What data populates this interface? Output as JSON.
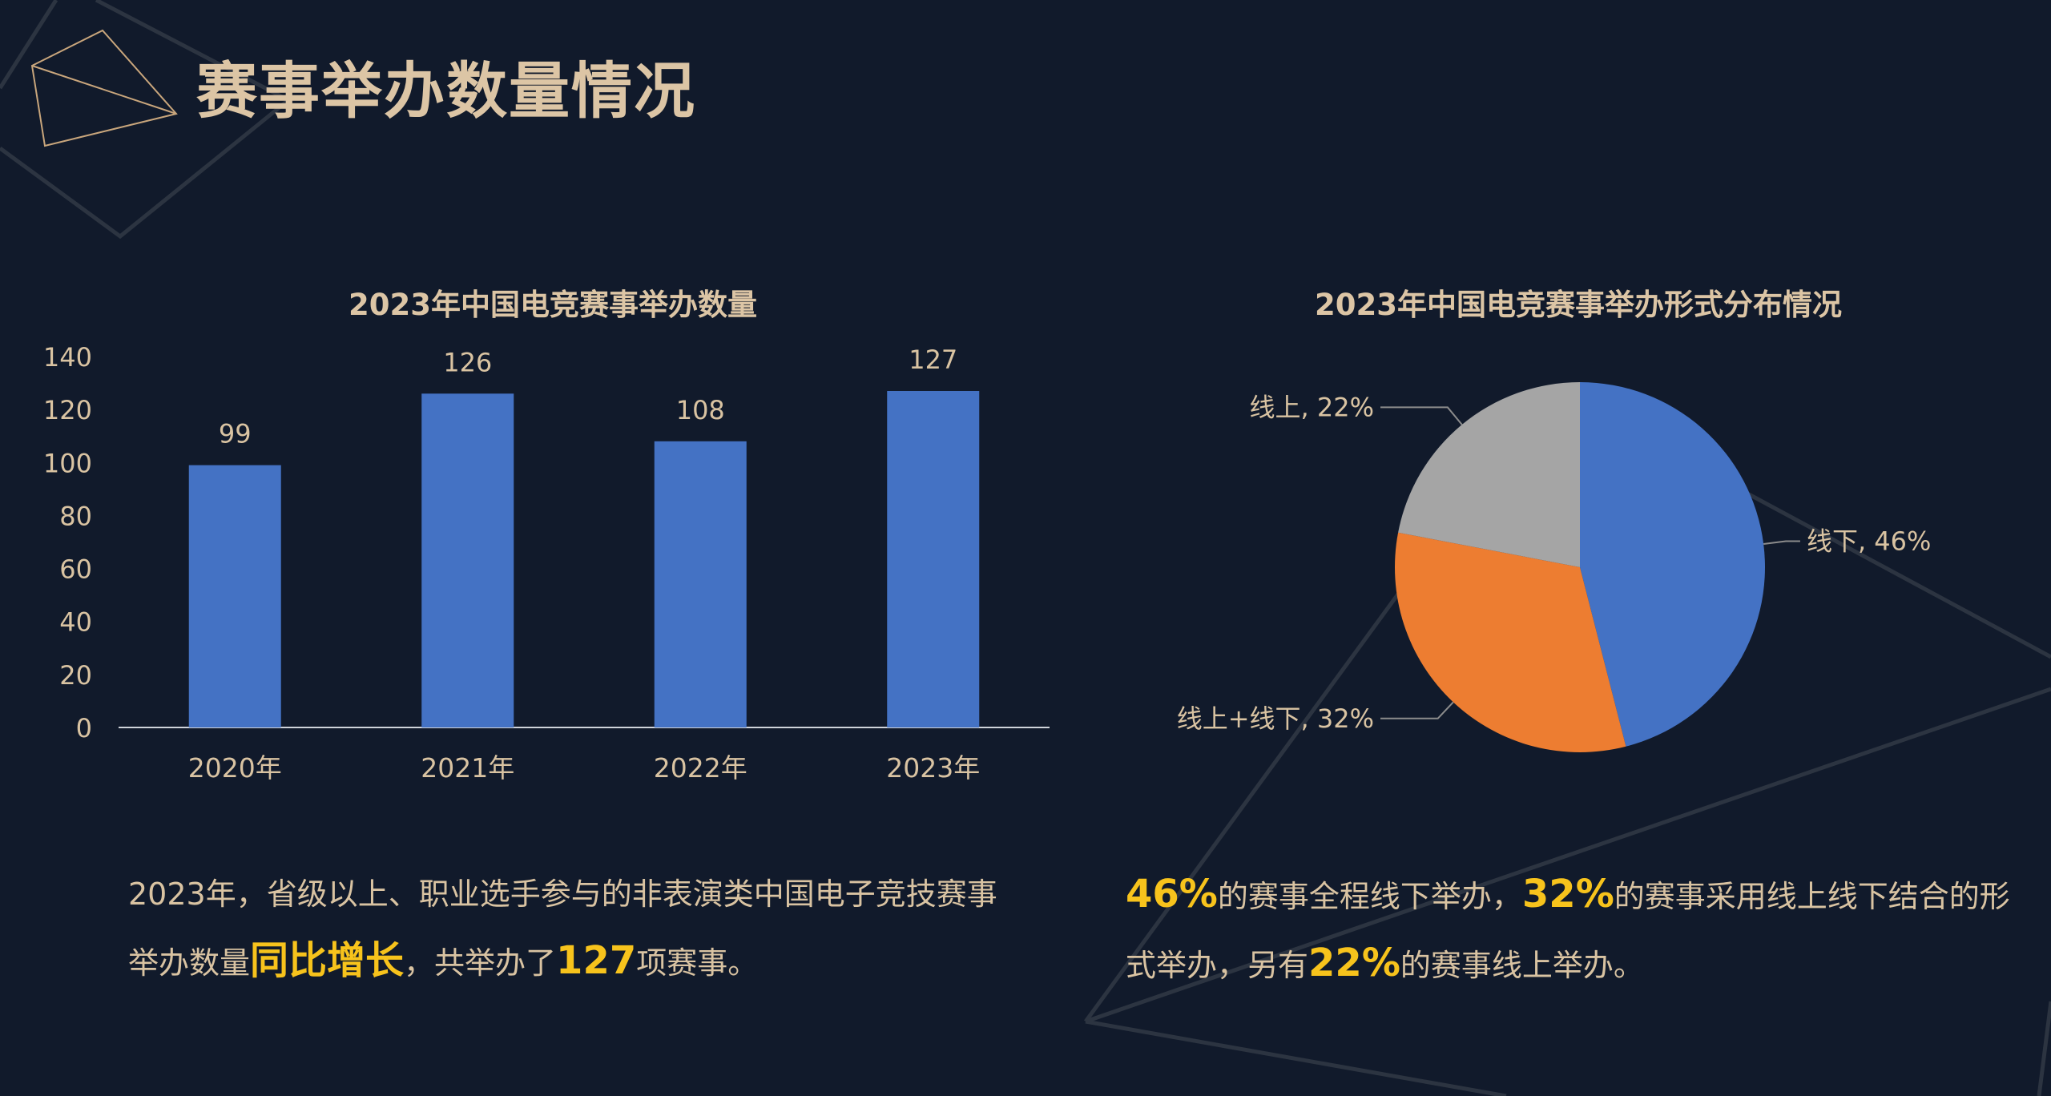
{
  "slide": {
    "title": "赛事举办数量情况"
  },
  "colors": {
    "background": "#111a2b",
    "title": "#dcc5a5",
    "text": "#d9c3a2",
    "highlight": "#f7c31c",
    "bar": "#4472c4"
  },
  "chart_data": [
    {
      "type": "bar",
      "title": "2023年中国电竞赛事举办数量",
      "categories": [
        "2020年",
        "2021年",
        "2022年",
        "2023年"
      ],
      "values": [
        99,
        126,
        108,
        127
      ],
      "ylim": [
        0,
        140
      ],
      "yticks": [
        0,
        20,
        40,
        60,
        80,
        100,
        120,
        140
      ],
      "xlabel": "",
      "ylabel": "",
      "grid": false,
      "data_labels": true
    },
    {
      "type": "pie",
      "title": "2023年中国电竞赛事举办形式分布情况",
      "slices": [
        {
          "label": "线下",
          "value": 46,
          "display": "线下, 46%",
          "color": "#4472c4"
        },
        {
          "label": "线上+线下",
          "value": 32,
          "display": "线上+线下, 32%",
          "color": "#ed7d31"
        },
        {
          "label": "线上",
          "value": 22,
          "display": "线上, 22%",
          "color": "#a5a5a5"
        }
      ]
    }
  ],
  "left_summary": {
    "p1": "2023年，省级以上、职业选手参与的非表演类中国电子竞技赛事举办数量",
    "h1": "同比增长",
    "p2": "，共举办了",
    "h2": "127",
    "p3": "项赛事。"
  },
  "right_summary": {
    "h1": "46%",
    "p1": "的赛事全程线下举办，",
    "h2": "32%",
    "p2": "的赛事采用线上线下结合的形式举办，另有",
    "h3": "22%",
    "p3": "的赛事线上举办。"
  }
}
